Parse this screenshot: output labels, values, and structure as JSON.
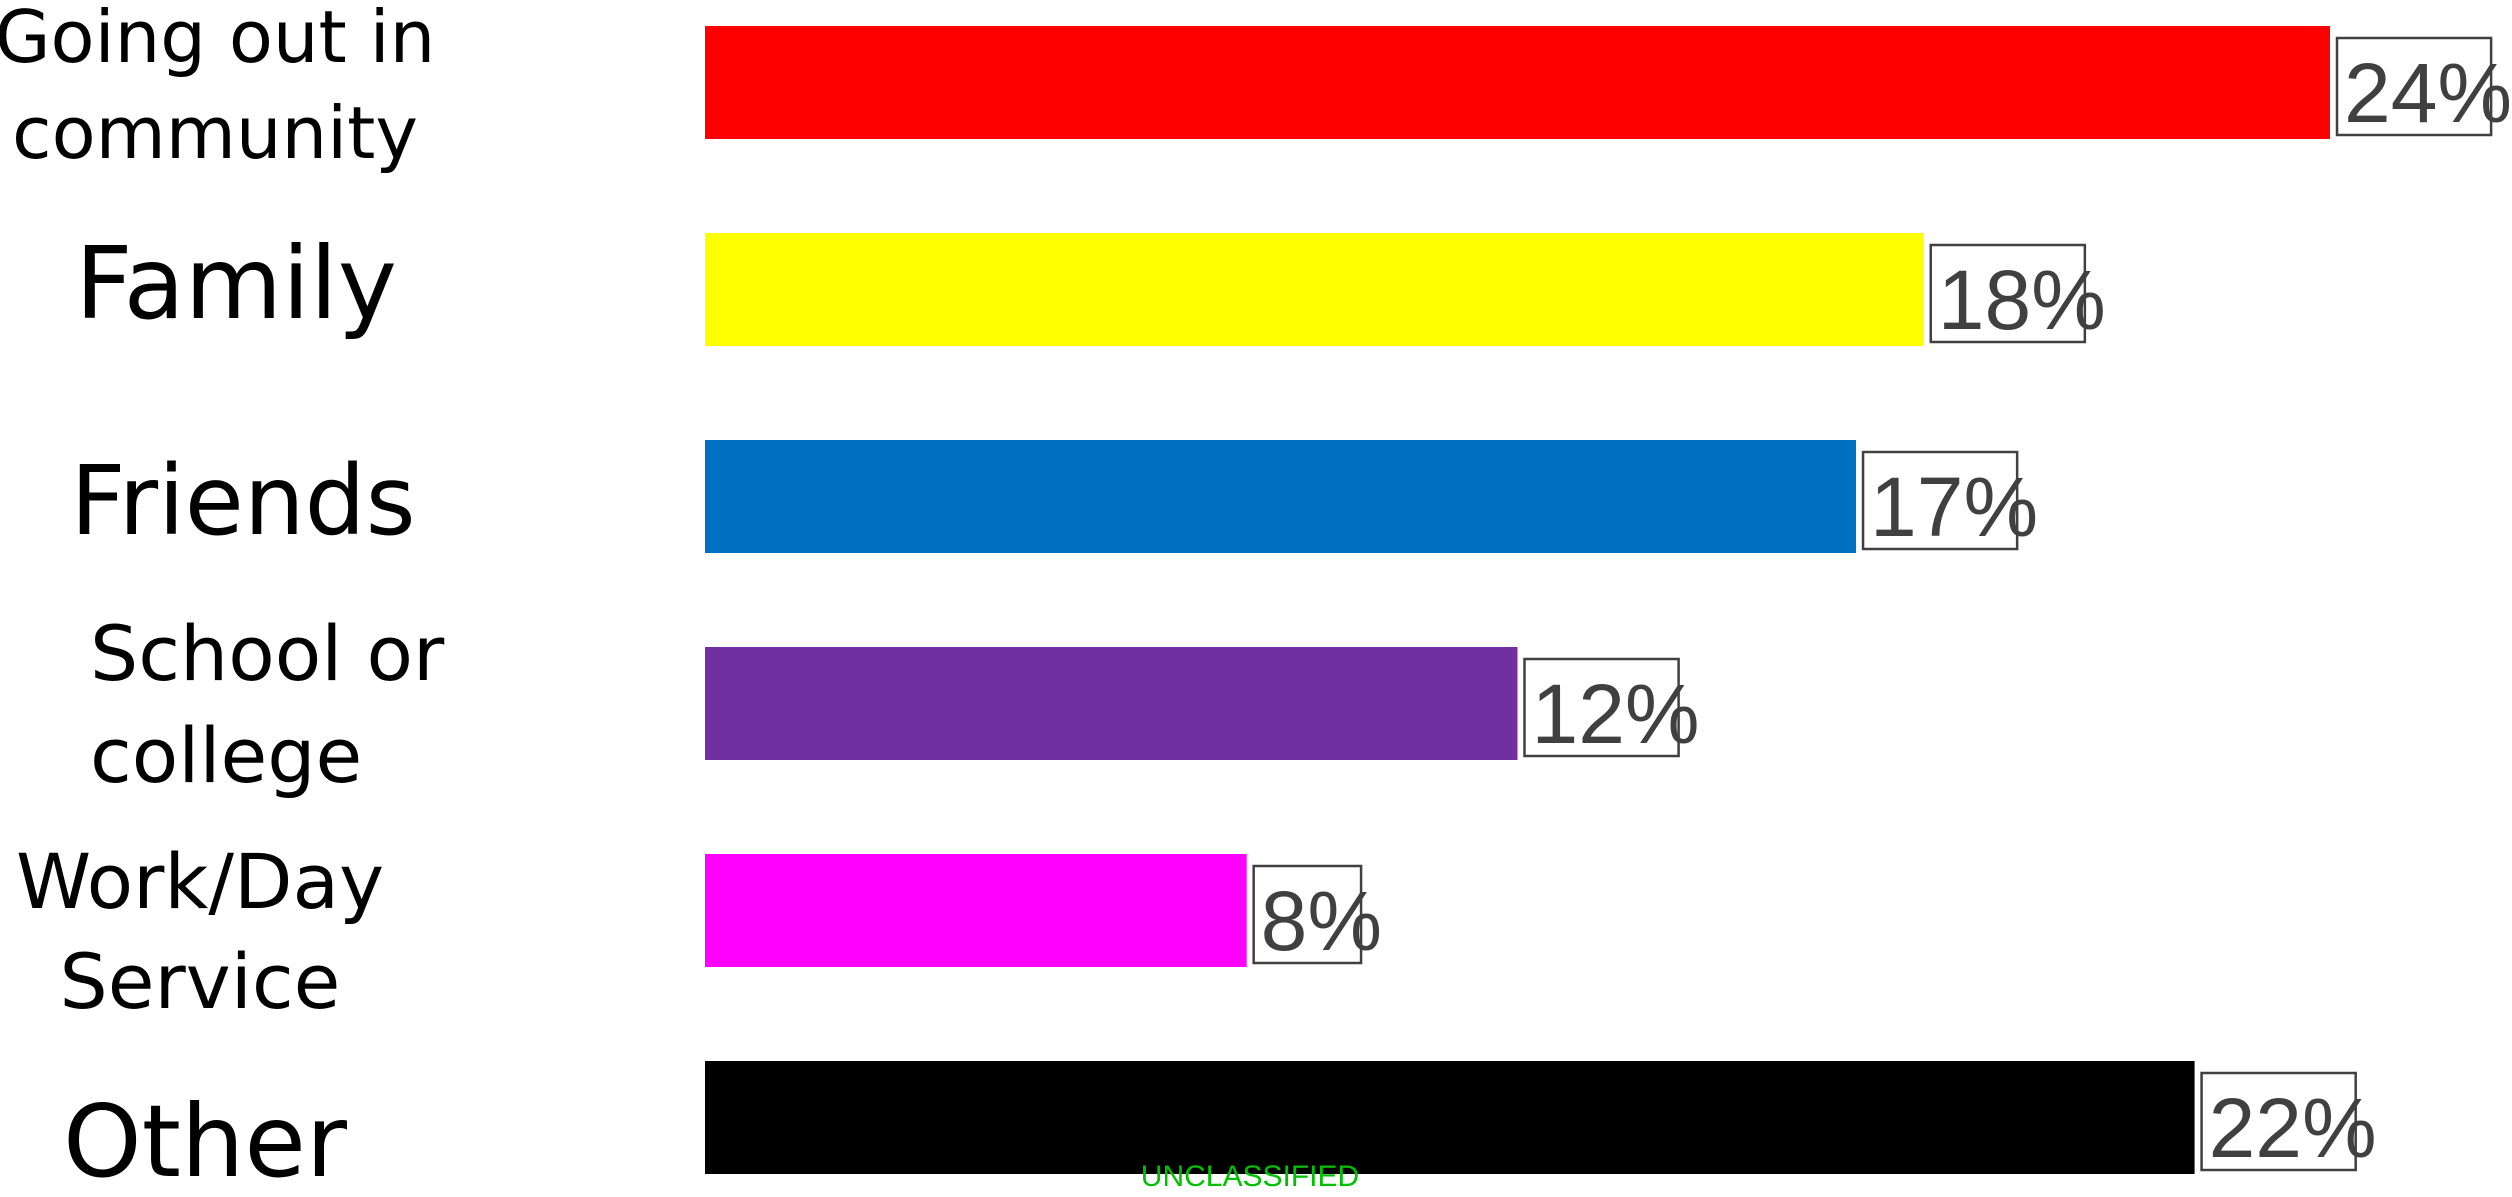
{
  "chart_data": {
    "type": "bar",
    "orientation": "horizontal",
    "categories": [
      [
        "Going out in",
        "community"
      ],
      [
        "Family"
      ],
      [
        "Friends"
      ],
      [
        "School or",
        "college"
      ],
      [
        "Work/Day",
        "Service"
      ],
      [
        "Other"
      ]
    ],
    "values": [
      24,
      18,
      17,
      12,
      8,
      22
    ],
    "value_labels": [
      "24%",
      "18%",
      "17%",
      "12%",
      "8%",
      "22%"
    ],
    "colors": [
      "#ff0000",
      "#ffff00",
      "#0070c0",
      "#7030a0",
      "#ff00ff",
      "#000000"
    ],
    "xlim": [
      0,
      24
    ],
    "grid": false,
    "legend": "none"
  },
  "footer": {
    "classification": "UNCLASSIFIED"
  }
}
